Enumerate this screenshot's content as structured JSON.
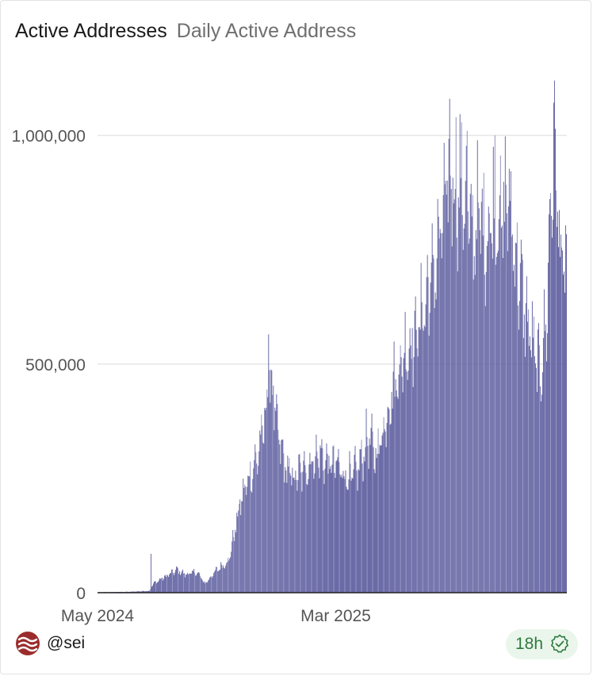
{
  "header": {
    "title": "Active Addresses",
    "subtitle": "Daily Active Address"
  },
  "chart_data": {
    "type": "bar",
    "title": "Active Addresses",
    "subtitle": "Daily Active Address",
    "ylim": [
      0,
      1100000
    ],
    "y_ticks": [
      {
        "value": 0,
        "label": "0"
      },
      {
        "value": 500000,
        "label": "500,000"
      },
      {
        "value": 1000000,
        "label": "1,000,000"
      }
    ],
    "x_ticks": [
      {
        "index": 0,
        "label": "May 2024"
      },
      {
        "index": 300,
        "label": "Mar 2025"
      }
    ],
    "series": [
      {
        "name": "Daily Active Address",
        "color": "#5b5b9e",
        "anchors": [
          [
            0,
            1000
          ],
          [
            40,
            2000
          ],
          [
            65,
            4000
          ],
          [
            70,
            20000
          ],
          [
            80,
            30000
          ],
          [
            90,
            40000
          ],
          [
            100,
            50000
          ],
          [
            110,
            40000
          ],
          [
            125,
            45000
          ],
          [
            135,
            20000
          ],
          [
            150,
            50000
          ],
          [
            165,
            70000
          ],
          [
            180,
            200000
          ],
          [
            190,
            250000
          ],
          [
            200,
            290000
          ],
          [
            210,
            370000
          ],
          [
            215,
            480000
          ],
          [
            220,
            450000
          ],
          [
            225,
            360000
          ],
          [
            235,
            280000
          ],
          [
            245,
            250000
          ],
          [
            255,
            260000
          ],
          [
            270,
            290000
          ],
          [
            280,
            300000
          ],
          [
            290,
            280000
          ],
          [
            300,
            280000
          ],
          [
            310,
            260000
          ],
          [
            320,
            250000
          ],
          [
            330,
            280000
          ],
          [
            340,
            340000
          ],
          [
            350,
            300000
          ],
          [
            360,
            360000
          ],
          [
            370,
            440000
          ],
          [
            380,
            490000
          ],
          [
            390,
            540000
          ],
          [
            400,
            560000
          ],
          [
            410,
            620000
          ],
          [
            420,
            680000
          ],
          [
            430,
            760000
          ],
          [
            440,
            880000
          ],
          [
            445,
            930000
          ],
          [
            450,
            880000
          ],
          [
            460,
            890000
          ],
          [
            470,
            780000
          ],
          [
            480,
            820000
          ],
          [
            490,
            780000
          ],
          [
            500,
            850000
          ],
          [
            510,
            810000
          ],
          [
            515,
            880000
          ],
          [
            520,
            820000
          ],
          [
            530,
            690000
          ],
          [
            540,
            600000
          ],
          [
            550,
            520000
          ],
          [
            555,
            480000
          ],
          [
            560,
            520000
          ],
          [
            565,
            600000
          ],
          [
            570,
            850000
          ],
          [
            575,
            1000000
          ],
          [
            580,
            820000
          ],
          [
            585,
            700000
          ],
          [
            590,
            720000
          ]
        ],
        "spikes": [
          [
            67,
            85000
          ],
          [
            215,
            565000
          ],
          [
            443,
            1080000
          ],
          [
            451,
            1040000
          ],
          [
            465,
            1010000
          ],
          [
            500,
            1000000
          ],
          [
            575,
            1120000
          ],
          [
            578,
            800000
          ]
        ]
      }
    ]
  },
  "footer": {
    "handle": "@sei",
    "freshness": "18h"
  },
  "colors": {
    "bar": "#5b5b9e",
    "grid": "#e6e6e6",
    "axis_text": "#555555",
    "badge_bg": "#eaf6ec",
    "badge_text": "#2f7a3d",
    "sei_logo": "#9b2c2c"
  },
  "icons": {
    "logo": "sei-logo-icon",
    "verified": "verified-check-icon"
  }
}
